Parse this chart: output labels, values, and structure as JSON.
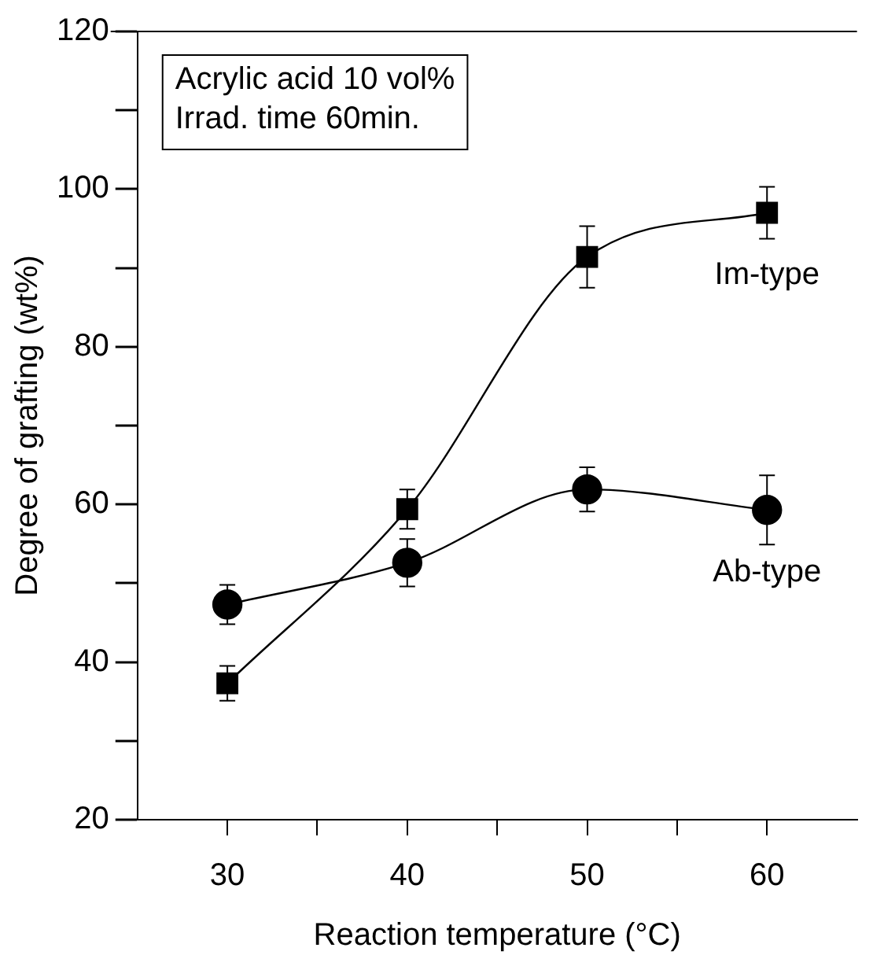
{
  "chart_data": {
    "type": "line",
    "xlabel": "Reaction temperature (°C)",
    "ylabel": "Degree of grafting (wt%)",
    "annotations": [
      "Acrylic acid 10 vol%\nIrrad. time 60min."
    ],
    "x": [
      30,
      40,
      50,
      60
    ],
    "xlim": [
      25,
      65
    ],
    "xticks": [
      30,
      {
        "value": 35,
        "label": null
      },
      40,
      {
        "value": 45,
        "label": null
      },
      50,
      {
        "value": 55,
        "label": null
      },
      60
    ],
    "ylim": [
      20,
      120
    ],
    "yticks": [
      20,
      {
        "value": 30,
        "label": null
      },
      40,
      {
        "value": 50,
        "label": null
      },
      60,
      {
        "value": 70,
        "label": null
      },
      80,
      {
        "value": 90,
        "label": null
      },
      100,
      {
        "value": 110,
        "label": null
      },
      120
    ],
    "grid": false,
    "legend": false,
    "series": [
      {
        "name": "Im-type",
        "color": "#000000",
        "marker": "square",
        "values": [
          37.3,
          59.4,
          91.4,
          97.0
        ],
        "errors": [
          2.2,
          2.5,
          3.9,
          3.3
        ]
      },
      {
        "name": "Ab-type",
        "color": "#000000",
        "marker": "circle",
        "values": [
          47.3,
          52.6,
          61.9,
          59.3
        ],
        "errors": [
          2.5,
          3.0,
          2.8,
          4.4
        ]
      }
    ]
  }
}
